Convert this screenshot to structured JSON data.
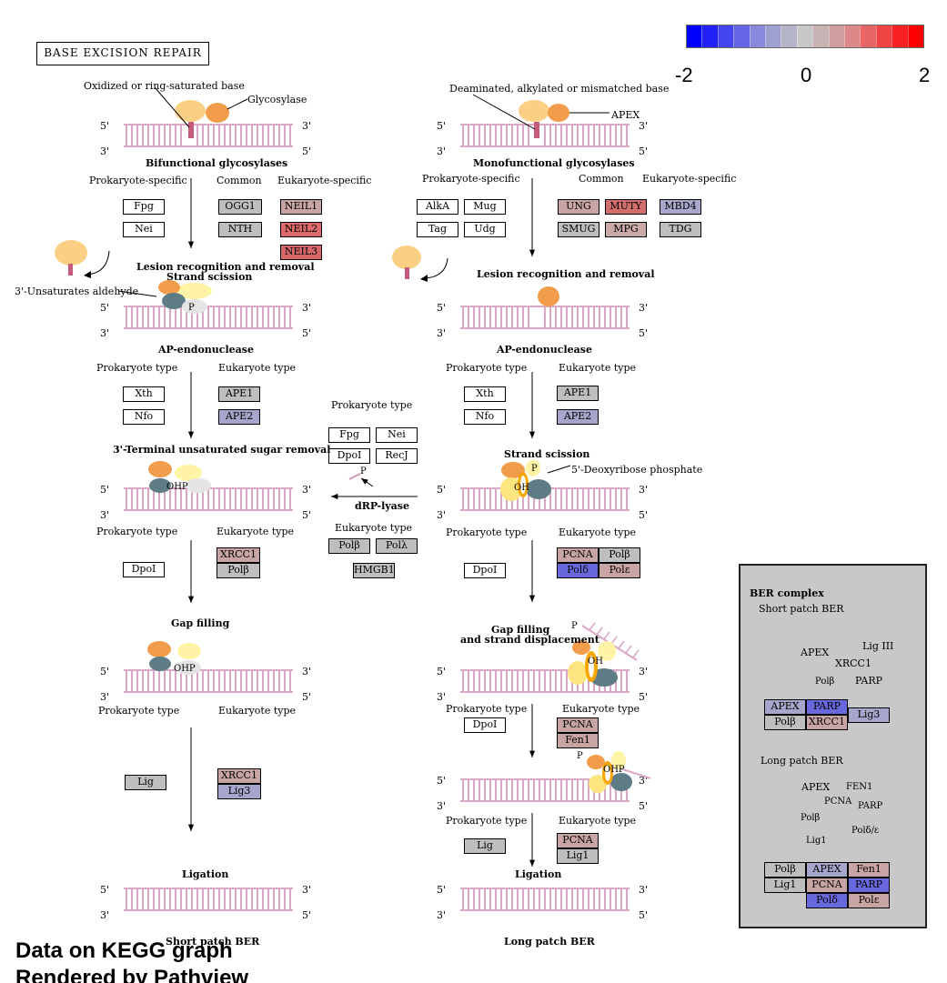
{
  "title": "BASE EXCISION REPAIR",
  "legend": {
    "ticks": [
      "-2",
      "0",
      "2"
    ],
    "colors": [
      "#0000ff",
      "#2222f8",
      "#4444f0",
      "#6666e8",
      "#8888dd",
      "#a0a0d0",
      "#b4b4c8",
      "#c8c8c8",
      "#c8b4b4",
      "#d0a0a0",
      "#dd8888",
      "#e86666",
      "#f04444",
      "#f82222",
      "#ff0000"
    ]
  },
  "ends": {
    "p5": "5'",
    "p3": "3'"
  },
  "labels": {
    "oxidized": "Oxidized or ring-saturated base",
    "glycosylase": "Glycosylase",
    "deaminated": "Deaminated, alkylated or mismatched base",
    "apex": "APEX",
    "bifunctional": "Bifunctional glycosylases",
    "monofunctional": "Monofunctional glycosylases",
    "prokaryote_specific": "Prokaryote-specific",
    "common": "Common",
    "eukaryote_specific": "Eukaryote-specific",
    "lesion_strand": "Lesion recognition and removal",
    "strand_scission_l": "Strand scission",
    "lesion_right": "Lesion recognition and removal",
    "unsat_aldehyde": "3'-Unsaturates aldehyde",
    "ap_endo": "AP-endonuclease",
    "prokaryote_type": "Prokaryote type",
    "eukaryote_type": "Eukaryote type",
    "terminal_sugar": "3'-Terminal unsaturated sugar removal",
    "strand_scission_r": "Strand scission",
    "deoxyribose": "5'-Deoxyribose phosphate",
    "drp_lyase": "dRP-lyase",
    "gap_filling": "Gap filling",
    "gap_filling_disp_1": "Gap filling",
    "gap_filling_disp_2": "and strand displacement",
    "ligation": "Ligation",
    "short_patch": "Short patch BER",
    "long_patch": "Long patch BER",
    "ohp": "OHP",
    "oh": "OH",
    "p": "P"
  },
  "genes": {
    "fpg1": {
      "label": "Fpg",
      "color": "#ffffff"
    },
    "nei1": {
      "label": "Nei",
      "color": "#ffffff"
    },
    "ogg1": {
      "label": "OGG1",
      "color": "#bebebe"
    },
    "nth": {
      "label": "NTH",
      "color": "#bebebe"
    },
    "neil1": {
      "label": "NEIL1",
      "color": "#c8a4a4"
    },
    "neil2": {
      "label": "NEIL2",
      "color": "#dc6a6a"
    },
    "neil3": {
      "label": "NEIL3",
      "color": "#d46868"
    },
    "alka": {
      "label": "AlkA",
      "color": "#ffffff"
    },
    "mug": {
      "label": "Mug",
      "color": "#ffffff"
    },
    "tag": {
      "label": "Tag",
      "color": "#ffffff"
    },
    "udg": {
      "label": "Udg",
      "color": "#ffffff"
    },
    "ung": {
      "label": "UNG",
      "color": "#c8a4a4"
    },
    "muty": {
      "label": "MUTY",
      "color": "#d26e6e"
    },
    "mbd4": {
      "label": "MBD4",
      "color": "#a8a8cc"
    },
    "smug": {
      "label": "SMUG",
      "color": "#bebebe"
    },
    "mpg": {
      "label": "MPG",
      "color": "#c8a8a8"
    },
    "tdg": {
      "label": "TDG",
      "color": "#bebebe"
    },
    "xth_l": {
      "label": "Xth",
      "color": "#ffffff"
    },
    "nfo_l": {
      "label": "Nfo",
      "color": "#ffffff"
    },
    "ape1_l": {
      "label": "APE1",
      "color": "#bebebe"
    },
    "ape2_l": {
      "label": "APE2",
      "color": "#a6a6cc"
    },
    "xth_r": {
      "label": "Xth",
      "color": "#ffffff"
    },
    "nfo_r": {
      "label": "Nfo",
      "color": "#ffffff"
    },
    "ape1_r": {
      "label": "APE1",
      "color": "#bebebe"
    },
    "ape2_r": {
      "label": "APE2",
      "color": "#a6a6cc"
    },
    "fpg_m": {
      "label": "Fpg",
      "color": "#ffffff"
    },
    "nei_m": {
      "label": "Nei",
      "color": "#ffffff"
    },
    "dpoi_m": {
      "label": "DpoI",
      "color": "#ffffff"
    },
    "recj_m": {
      "label": "RecJ",
      "color": "#ffffff"
    },
    "polb_m": {
      "label": "Polβ",
      "color": "#bebebe"
    },
    "poll_m": {
      "label": "Polλ",
      "color": "#bebebe"
    },
    "hmgb1_m": {
      "label": "HMGB1",
      "color": "#bebebe"
    },
    "dpoi_l1": {
      "label": "DpoI",
      "color": "#ffffff"
    },
    "xrcc1_l1": {
      "label": "XRCC1",
      "color": "#c8a4a4"
    },
    "polb_l1": {
      "label": "Polβ",
      "color": "#bebebe"
    },
    "dpoi_r1": {
      "label": "DpoI",
      "color": "#ffffff"
    },
    "pcna_r1": {
      "label": "PCNA",
      "color": "#c8a4a4"
    },
    "polb_r1": {
      "label": "Polβ",
      "color": "#bebebe"
    },
    "pold_r1": {
      "label": "Polδ",
      "color": "#6868dc"
    },
    "pole_r1": {
      "label": "Polε",
      "color": "#c8a4a4"
    },
    "lig_l": {
      "label": "Lig",
      "color": "#bebebe"
    },
    "xrcc1_l2": {
      "label": "XRCC1",
      "color": "#c8a4a4"
    },
    "lig3_l": {
      "label": "Lig3",
      "color": "#a6a6cc"
    },
    "dpoi_r2": {
      "label": "DpoI",
      "color": "#ffffff"
    },
    "pcna_r2": {
      "label": "PCNA",
      "color": "#c8a4a4"
    },
    "fen1_r2": {
      "label": "Fen1",
      "color": "#c8a4a4"
    },
    "lig_r": {
      "label": "Lig",
      "color": "#bebebe"
    },
    "pcna_r3": {
      "label": "PCNA",
      "color": "#c8a4a4"
    },
    "lig1_r": {
      "label": "Lig1",
      "color": "#bebebe"
    }
  },
  "ber": {
    "title": "BER complex",
    "short": "Short patch BER",
    "long": "Long patch BER",
    "short_labels": {
      "apex": "APEX",
      "lig3": "Lig III",
      "xrcc1": "XRCC1",
      "polb": "Polβ",
      "parp": "PARP"
    },
    "long_labels": {
      "apex": "APEX",
      "fen1": "FEN1",
      "pcna": "PCNA",
      "parp": "PARP",
      "polb": "Polβ",
      "polde": "Polδ/ε",
      "lig1": "Lig1"
    },
    "short_table": [
      [
        {
          "label": "APEX",
          "color": "#a6a6cc"
        },
        {
          "label": "PARP",
          "color": "#6868dc"
        },
        {
          "label": "Lig3",
          "color": "#a6a6cc"
        }
      ],
      [
        {
          "label": "Polβ",
          "color": "#bebebe"
        },
        {
          "label": "XRCC1",
          "color": "#c8a4a4"
        }
      ]
    ],
    "long_table": [
      [
        {
          "label": "Polβ",
          "color": "#bebebe"
        },
        {
          "label": "APEX",
          "color": "#a6a6cc"
        },
        {
          "label": "Fen1",
          "color": "#c8a4a4"
        }
      ],
      [
        {
          "label": "Lig1",
          "color": "#bebebe"
        },
        {
          "label": "PCNA",
          "color": "#c8a4a4"
        },
        {
          "label": "PARP",
          "color": "#6868dc"
        }
      ],
      [
        {
          "label": "Polδ",
          "color": "#6868dc"
        },
        {
          "label": "Polε",
          "color": "#c8a4a4"
        }
      ]
    ]
  },
  "footer": {
    "line1": "Data on KEGG graph",
    "line2": "Rendered by Pathview"
  }
}
